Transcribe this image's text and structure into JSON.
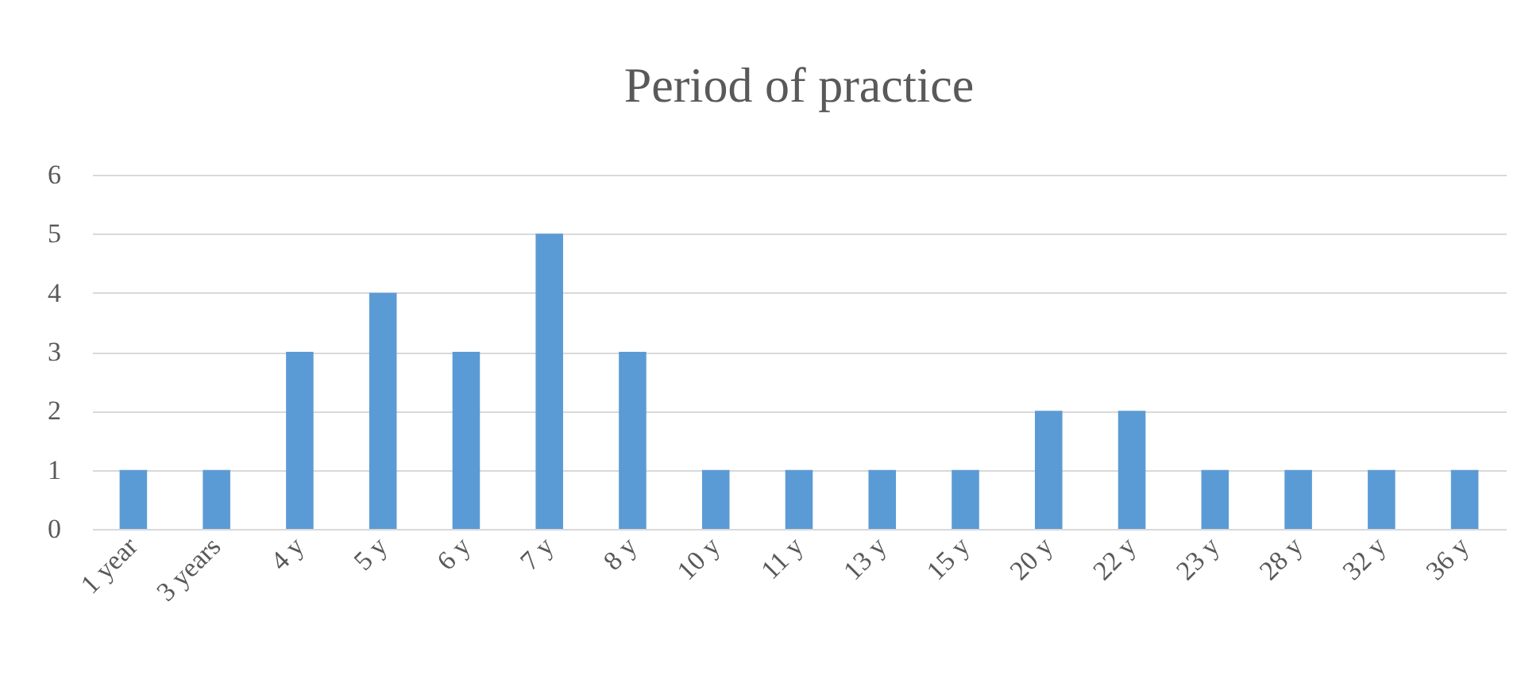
{
  "chart_data": {
    "type": "bar",
    "title": "Period of practice",
    "categories": [
      "1 year",
      "3 years",
      "4 y",
      "5 y",
      "6 y",
      "7 y",
      "8 y",
      "10 y",
      "11 y",
      "13 y",
      "15 y",
      "20 y",
      "22 y",
      "23 y",
      "28 y",
      "32 y",
      "36 y"
    ],
    "values": [
      1,
      1,
      3,
      4,
      3,
      5,
      3,
      1,
      1,
      1,
      1,
      2,
      2,
      1,
      1,
      1,
      1
    ],
    "color": "#5b9bd5",
    "ylim": [
      0,
      6
    ],
    "yticks": [
      0,
      1,
      2,
      3,
      4,
      5,
      6
    ],
    "grid": "y"
  }
}
